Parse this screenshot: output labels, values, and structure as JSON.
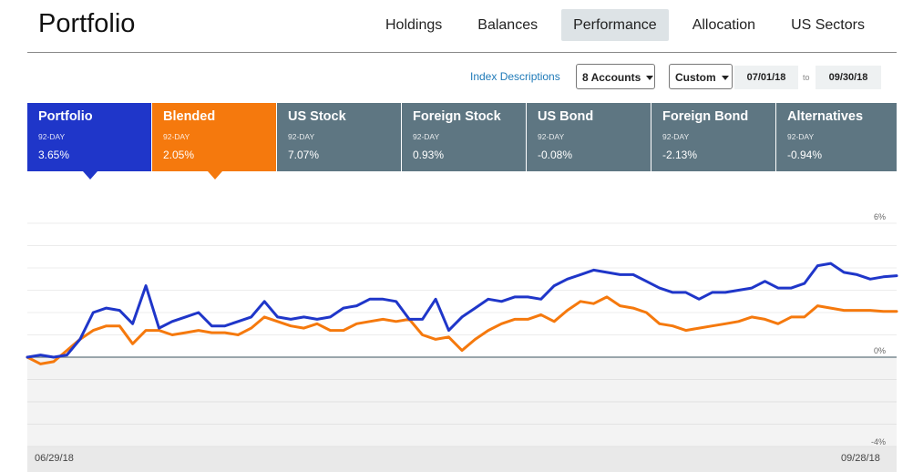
{
  "title": "Portfolio",
  "nav": [
    "Holdings",
    "Balances",
    "Performance",
    "Allocation",
    "US Sectors"
  ],
  "nav_active": "Performance",
  "toolbar": {
    "index_link": "Index Descriptions",
    "accounts": "8 Accounts",
    "range": "Custom",
    "start": "07/01/18",
    "to": "to",
    "end": "09/30/18"
  },
  "cards": [
    {
      "name": "Portfolio",
      "period": "92-DAY",
      "value": "3.65%"
    },
    {
      "name": "Blended",
      "period": "92-DAY",
      "value": "2.05%"
    },
    {
      "name": "US Stock",
      "period": "92-DAY",
      "value": "7.07%"
    },
    {
      "name": "Foreign Stock",
      "period": "92-DAY",
      "value": "0.93%"
    },
    {
      "name": "US Bond",
      "period": "92-DAY",
      "value": "-0.08%"
    },
    {
      "name": "Foreign Bond",
      "period": "92-DAY",
      "value": "-2.13%"
    },
    {
      "name": "Alternatives",
      "period": "92-DAY",
      "value": "-0.94%"
    }
  ],
  "colors": {
    "portfolio": "#1f36c9",
    "blended": "#f5790d",
    "card": "#5e7682"
  },
  "chart_data": {
    "type": "line",
    "x_start_label": "06/29/18",
    "x_end_label": "09/28/18",
    "y_tick_labels": [
      "6%",
      "0%",
      "-4%"
    ],
    "ylim": [
      -4,
      6
    ],
    "grid": true,
    "series": [
      {
        "name": "Portfolio",
        "color": "#1f36c9",
        "values": [
          0,
          0.1,
          0,
          0.1,
          0.8,
          2,
          2.2,
          2.1,
          1.5,
          3.2,
          1.3,
          1.6,
          1.8,
          2,
          1.4,
          1.4,
          1.6,
          1.8,
          2.5,
          1.8,
          1.7,
          1.8,
          1.7,
          1.8,
          2.2,
          2.3,
          2.6,
          2.6,
          2.5,
          1.7,
          1.7,
          2.6,
          1.2,
          1.8,
          2.2,
          2.6,
          2.5,
          2.7,
          2.7,
          2.6,
          3.2,
          3.5,
          3.7,
          3.9,
          3.8,
          3.7,
          3.7,
          3.4,
          3.1,
          2.9,
          2.9,
          2.6,
          2.9,
          2.9,
          3,
          3.1,
          3.4,
          3.1,
          3.1,
          3.3,
          4.1,
          4.2,
          3.8,
          3.7,
          3.5,
          3.6,
          3.65
        ]
      },
      {
        "name": "Blended",
        "color": "#f5790d",
        "values": [
          0,
          -0.3,
          -0.2,
          0.3,
          0.8,
          1.2,
          1.4,
          1.4,
          0.6,
          1.2,
          1.2,
          1.0,
          1.1,
          1.2,
          1.1,
          1.1,
          1.0,
          1.3,
          1.8,
          1.6,
          1.4,
          1.3,
          1.5,
          1.2,
          1.2,
          1.5,
          1.6,
          1.7,
          1.6,
          1.7,
          1.0,
          0.8,
          0.9,
          0.3,
          0.8,
          1.2,
          1.5,
          1.7,
          1.7,
          1.9,
          1.6,
          2.1,
          2.5,
          2.4,
          2.7,
          2.3,
          2.2,
          2.0,
          1.5,
          1.4,
          1.2,
          1.3,
          1.4,
          1.5,
          1.6,
          1.8,
          1.7,
          1.5,
          1.8,
          1.8,
          2.3,
          2.2,
          2.1,
          2.1,
          2.1,
          2.05,
          2.05
        ]
      }
    ]
  }
}
